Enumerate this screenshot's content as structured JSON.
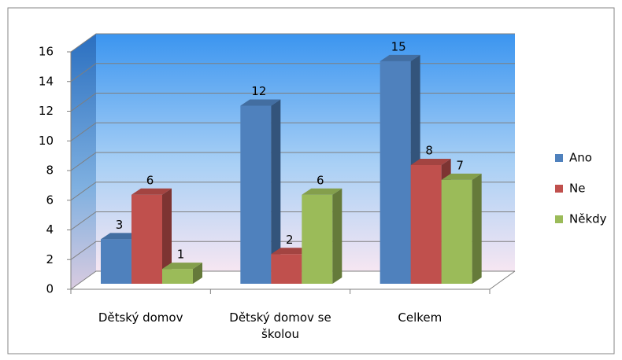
{
  "chart_data": {
    "type": "bar",
    "categories": [
      "Dětský domov",
      "Dětský domov se školou",
      "Celkem"
    ],
    "series": [
      {
        "name": "Ano",
        "color": "#4f81bd",
        "values": [
          3,
          12,
          15
        ]
      },
      {
        "name": "Ne",
        "color": "#c0504d",
        "values": [
          6,
          2,
          8
        ]
      },
      {
        "name": "Někdy",
        "color": "#9bbb59",
        "values": [
          1,
          6,
          7
        ]
      }
    ],
    "ylim": [
      0,
      16
    ],
    "yticks": [
      0,
      2,
      4,
      6,
      8,
      10,
      12,
      14,
      16
    ],
    "grid": true,
    "legend": "right"
  }
}
